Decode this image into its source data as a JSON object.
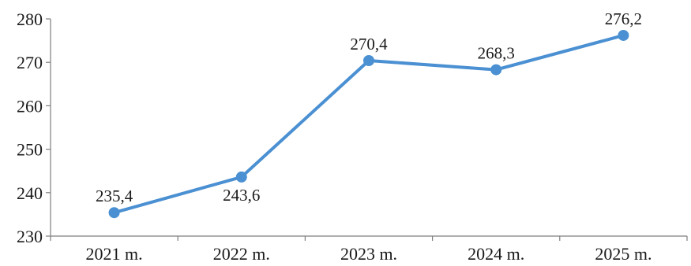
{
  "chart_data": {
    "type": "line",
    "categories": [
      "2021 m.",
      "2022 m.",
      "2023 m.",
      "2024 m.",
      "2025 m."
    ],
    "series": [
      {
        "values": [
          235.4,
          243.6,
          270.4,
          268.3,
          276.2
        ],
        "data_labels": [
          "235,4",
          "243,6",
          "270,4",
          "268,3",
          "276,2"
        ],
        "color": "#4a90d2"
      }
    ],
    "ylim": [
      230,
      280
    ],
    "yticks": [
      230,
      240,
      250,
      260,
      270,
      280
    ],
    "title": "",
    "xlabel": "",
    "ylabel": "",
    "grid": false,
    "legend": "none"
  }
}
